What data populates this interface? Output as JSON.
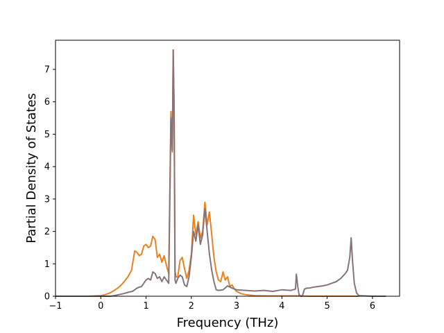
{
  "chart_data": {
    "type": "line",
    "title": "",
    "xlabel": "Frequency (THz)",
    "ylabel": "Partial Density of States",
    "xlim": [
      -1.0,
      6.6
    ],
    "ylim": [
      0,
      7.9
    ],
    "xticks": [
      -1,
      0,
      1,
      2,
      3,
      4,
      5,
      6
    ],
    "yticks": [
      0,
      1,
      2,
      3,
      4,
      5,
      6,
      7
    ],
    "grid": false,
    "legend": "none",
    "colors": {
      "orange": "#ff7f0e",
      "gray": "#7f7f7f",
      "overlap": "#8c6d62",
      "axes": "#000000"
    },
    "series": [
      {
        "color": "#e8801e",
        "x": [
          -0.3,
          0.0,
          0.1,
          0.2,
          0.3,
          0.4,
          0.5,
          0.6,
          0.68,
          0.75,
          0.8,
          0.85,
          0.9,
          0.95,
          1.0,
          1.05,
          1.1,
          1.15,
          1.2,
          1.25,
          1.3,
          1.35,
          1.4,
          1.45,
          1.5,
          1.55,
          1.58,
          1.6,
          1.62,
          1.64,
          1.66,
          1.7,
          1.75,
          1.8,
          1.85,
          1.9,
          1.95,
          2.0,
          2.05,
          2.1,
          2.15,
          2.2,
          2.25,
          2.3,
          2.35,
          2.4,
          2.45,
          2.5,
          2.55,
          2.6,
          2.65,
          2.7,
          2.75,
          2.8,
          2.85,
          2.9,
          2.95,
          3.0,
          3.1,
          3.2,
          3.4,
          3.6,
          3.8,
          4.0,
          4.2,
          4.4,
          4.6,
          4.8,
          5.0,
          5.2,
          5.4,
          5.5,
          5.55,
          5.6,
          5.65,
          5.7
        ],
        "y": [
          0.0,
          0.02,
          0.05,
          0.1,
          0.18,
          0.28,
          0.42,
          0.6,
          0.8,
          1.4,
          1.35,
          1.25,
          1.3,
          1.55,
          1.6,
          1.5,
          1.55,
          1.85,
          1.75,
          1.2,
          1.3,
          1.05,
          1.25,
          0.95,
          0.7,
          5.7,
          4.45,
          7.6,
          5.8,
          0.8,
          0.6,
          0.6,
          1.1,
          1.2,
          0.85,
          0.55,
          0.8,
          1.3,
          2.5,
          1.9,
          2.3,
          1.8,
          2.0,
          2.9,
          2.2,
          2.6,
          1.9,
          1.2,
          0.75,
          0.5,
          0.45,
          0.75,
          0.5,
          0.6,
          0.3,
          0.35,
          0.22,
          0.15,
          0.08,
          0.05,
          0.02,
          0.01,
          0.01,
          0.01,
          0.01,
          0.01,
          0.0,
          0.0,
          0.0,
          0.0,
          0.0,
          0.0,
          0.0,
          0.0,
          0.0,
          0.0
        ]
      },
      {
        "color": "#867377",
        "x": [
          -1.0,
          -0.3,
          0.0,
          0.2,
          0.3,
          0.4,
          0.5,
          0.6,
          0.7,
          0.75,
          0.8,
          0.85,
          0.9,
          0.95,
          1.0,
          1.05,
          1.1,
          1.15,
          1.2,
          1.25,
          1.3,
          1.35,
          1.4,
          1.45,
          1.5,
          1.55,
          1.58,
          1.6,
          1.62,
          1.64,
          1.66,
          1.7,
          1.75,
          1.8,
          1.85,
          1.9,
          1.95,
          2.0,
          2.05,
          2.1,
          2.15,
          2.2,
          2.25,
          2.3,
          2.35,
          2.4,
          2.45,
          2.5,
          2.55,
          2.6,
          2.7,
          2.8,
          2.9,
          3.0,
          3.2,
          3.4,
          3.6,
          3.8,
          4.0,
          4.2,
          4.3,
          4.32,
          4.35,
          4.38,
          4.42,
          4.45,
          4.5,
          4.55,
          4.6,
          4.7,
          4.8,
          4.9,
          5.0,
          5.1,
          5.2,
          5.3,
          5.4,
          5.45,
          5.5,
          5.53,
          5.56,
          5.6,
          5.65,
          5.7,
          6.0,
          6.3
        ],
        "y": [
          0.0,
          0.0,
          0.0,
          0.0,
          0.02,
          0.05,
          0.08,
          0.12,
          0.15,
          0.2,
          0.25,
          0.28,
          0.3,
          0.4,
          0.5,
          0.55,
          0.5,
          0.75,
          0.7,
          0.55,
          0.6,
          0.45,
          0.6,
          0.5,
          0.4,
          5.5,
          4.5,
          7.6,
          5.7,
          0.5,
          0.4,
          0.55,
          0.65,
          0.6,
          0.35,
          0.3,
          0.6,
          1.2,
          2.0,
          1.7,
          2.2,
          1.6,
          1.9,
          2.7,
          2.0,
          1.3,
          0.8,
          0.45,
          0.2,
          0.18,
          0.2,
          0.32,
          0.25,
          0.2,
          0.18,
          0.16,
          0.18,
          0.15,
          0.2,
          0.18,
          0.22,
          0.68,
          0.3,
          0.05,
          0.0,
          0.0,
          0.22,
          0.25,
          0.25,
          0.28,
          0.3,
          0.32,
          0.35,
          0.4,
          0.45,
          0.55,
          0.7,
          0.8,
          1.2,
          1.8,
          1.1,
          0.4,
          0.1,
          0.02,
          0.0,
          0.0
        ]
      }
    ]
  }
}
